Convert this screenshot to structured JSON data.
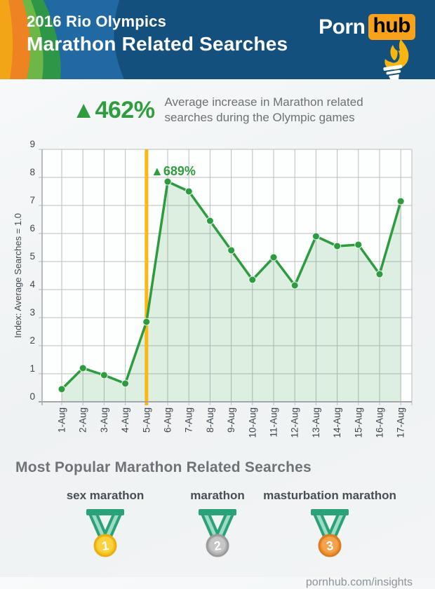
{
  "header": {
    "line1": "2016 Rio Olympics",
    "line2": "Marathon Related Searches",
    "logo": {
      "part1": "Porn",
      "part2": "hub"
    }
  },
  "icons": {
    "torch": "torch-icon",
    "medal": "medal-icon",
    "up_triangle": "▲"
  },
  "promo": {
    "stat": "▲462%",
    "desc_line1": "Average increase in Marathon related",
    "desc_line2": "searches during the Olympic games"
  },
  "chart_data": {
    "type": "line",
    "x_labels": [
      "1-Aug",
      "2-Aug",
      "3-Aug",
      "4-Aug",
      "5-Aug",
      "6-Aug",
      "7-Aug",
      "8-Aug",
      "9-Aug",
      "10-Aug",
      "11-Aug",
      "12-Aug",
      "13-Aug",
      "14-Aug",
      "15-Aug",
      "16-Aug",
      "17-Aug"
    ],
    "values": [
      0.45,
      1.2,
      0.95,
      0.65,
      2.85,
      7.85,
      7.5,
      6.45,
      5.4,
      4.35,
      5.15,
      4.15,
      5.9,
      5.55,
      5.6,
      4.55,
      7.15
    ],
    "ylabel": "Index: Average Searches = 1.0",
    "ylim": [
      0,
      9
    ],
    "yticks": [
      0,
      1,
      2,
      3,
      4,
      5,
      6,
      7,
      8,
      9
    ],
    "grid": true,
    "legend": "none",
    "line_color": "#2c9c3f",
    "fill_color": "rgba(58,160,70,0.16)",
    "grid_color": "#b9bcbe",
    "axis_color": "#a4a7aa",
    "tick_color": "#3d454d",
    "vline": {
      "x_label": "5-Aug",
      "color": "#fdb713"
    },
    "annotation": {
      "text": "▲689%",
      "x_label": "6-Aug",
      "color": "#2f9c3d"
    }
  },
  "bottom": {
    "heading": "Most Popular Marathon Related Searches",
    "medals": [
      {
        "rank": "1",
        "label": "sex marathon",
        "metal": "gold",
        "colors": {
          "ring": "#e9ae14",
          "fill": "#f6c51e",
          "light": "#fbd23e"
        }
      },
      {
        "rank": "2",
        "label": "marathon",
        "metal": "silver",
        "colors": {
          "ring": "#9b9b9b",
          "fill": "#b3b3b3",
          "light": "#c6c6c6"
        }
      },
      {
        "rank": "3",
        "label": "masturbation marathon",
        "metal": "bronze",
        "colors": {
          "ring": "#da7d20",
          "fill": "#ee9132",
          "light": "#f3a44b"
        }
      }
    ],
    "ribbon": {
      "dark": "#2ba17a",
      "light": "#9cdcc2"
    },
    "footer": "pornhub.com/insights"
  },
  "colors": {
    "header_bg": "#14507d",
    "header_band_blue": "#2169a2",
    "band_dark_green": "#2e9747",
    "band_light_green": "#6cb745",
    "band_orange": "#ee8323",
    "band_gold": "#f2a517",
    "accent_green": "#2f9c3d",
    "accent_orange_line": "#fdb713",
    "logo_orange": "#f8a11b"
  }
}
